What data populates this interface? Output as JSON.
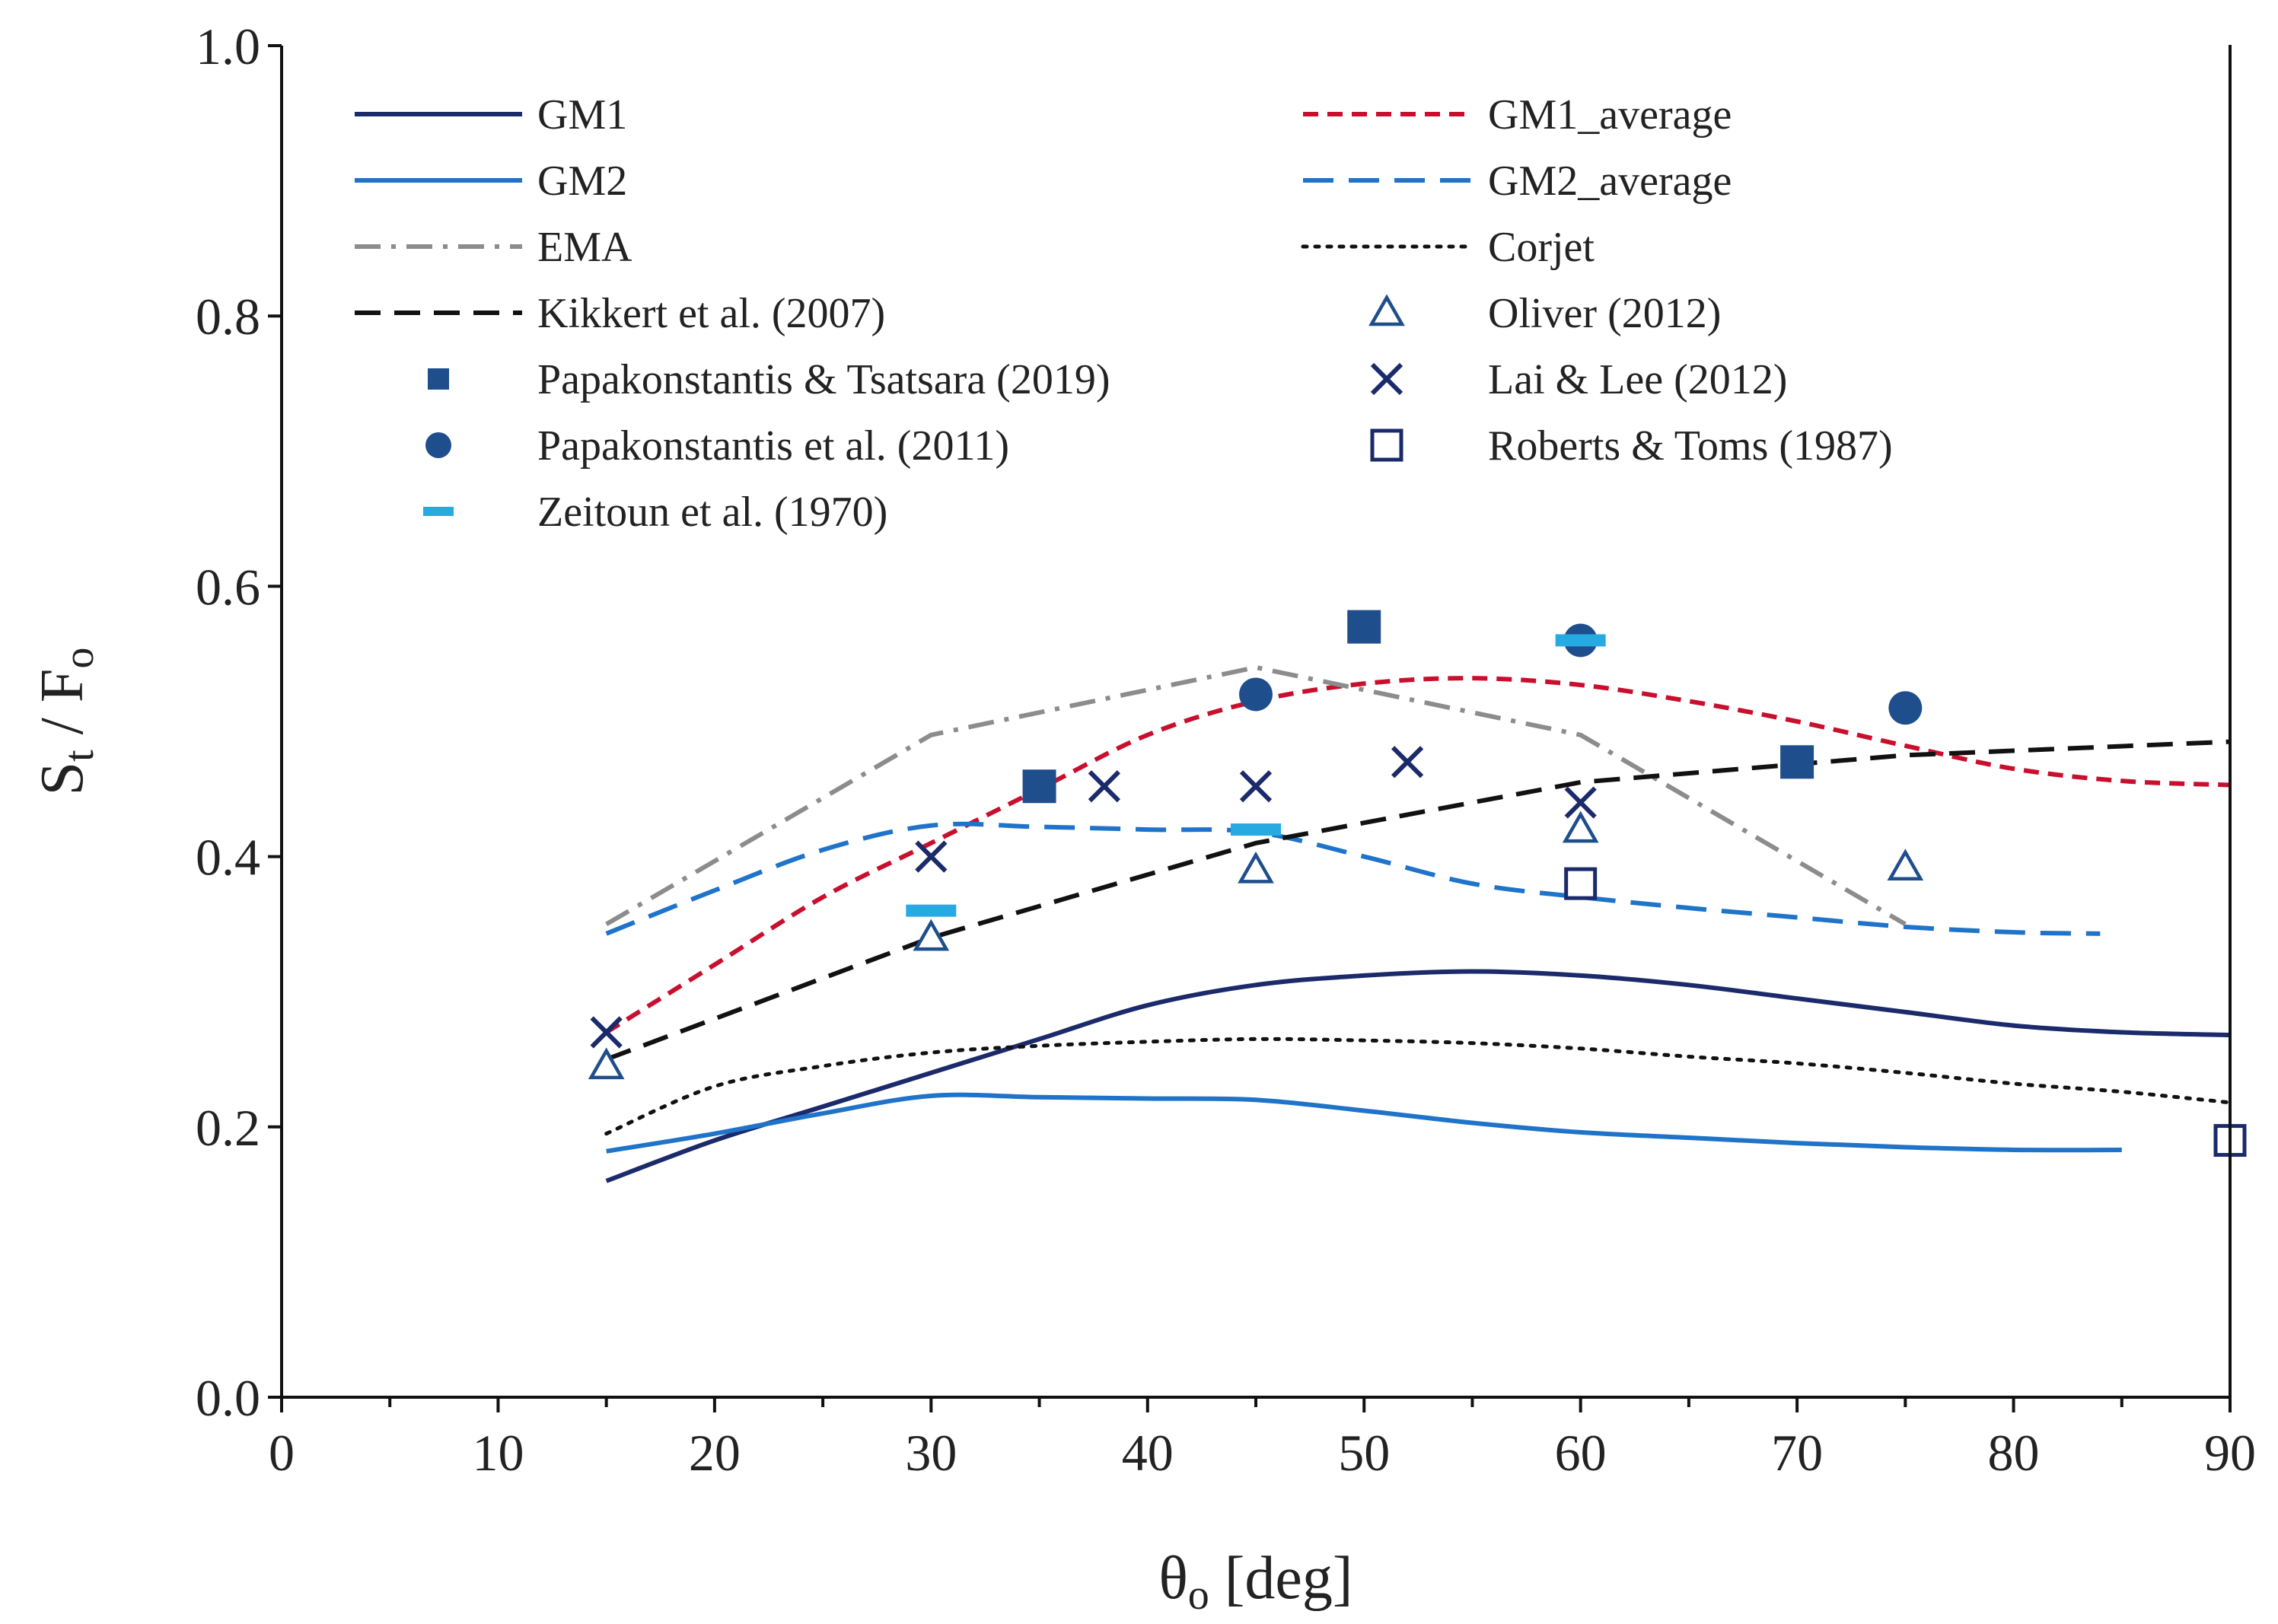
{
  "chart_data": {
    "type": "line",
    "xlabel": {
      "main": "θ",
      "sub": "o",
      "rest": " [deg]"
    },
    "ylabel": {
      "main1": "S",
      "sub1": "t",
      "mid": " / F",
      "sub2": "o"
    },
    "xlim": [
      0,
      90
    ],
    "ylim": [
      0.0,
      1.0
    ],
    "x_ticks": [
      0,
      10,
      20,
      30,
      40,
      50,
      60,
      70,
      80,
      90
    ],
    "y_ticks": [
      "0.0",
      "0.2",
      "0.4",
      "0.6",
      "0.8",
      "1.0"
    ],
    "grid": false,
    "legend_position": "top",
    "series": [
      {
        "name": "GM1",
        "kind": "line",
        "color": "#1b2a6b",
        "dash": "solid",
        "x": [
          15,
          20,
          25,
          30,
          35,
          40,
          45,
          50,
          55,
          60,
          65,
          70,
          75,
          80,
          85,
          90
        ],
        "y": [
          0.16,
          0.19,
          0.215,
          0.24,
          0.265,
          0.29,
          0.305,
          0.312,
          0.315,
          0.312,
          0.305,
          0.295,
          0.285,
          0.275,
          0.27,
          0.268
        ]
      },
      {
        "name": "GM1_average",
        "kind": "line",
        "color": "#c8102e",
        "dash": "short",
        "x": [
          15,
          20,
          25,
          30,
          35,
          40,
          45,
          50,
          55,
          60,
          65,
          70,
          75,
          80,
          85,
          90
        ],
        "y": [
          0.27,
          0.32,
          0.37,
          0.41,
          0.45,
          0.49,
          0.515,
          0.528,
          0.532,
          0.527,
          0.515,
          0.5,
          0.482,
          0.465,
          0.456,
          0.453
        ]
      },
      {
        "name": "GM2",
        "kind": "line",
        "color": "#1f73c9",
        "dash": "solid",
        "x": [
          15,
          20,
          25,
          30,
          35,
          40,
          45,
          50,
          55,
          60,
          65,
          70,
          75,
          80,
          85
        ],
        "y": [
          0.182,
          0.195,
          0.21,
          0.223,
          0.222,
          0.221,
          0.22,
          0.212,
          0.203,
          0.196,
          0.192,
          0.188,
          0.185,
          0.183,
          0.183
        ]
      },
      {
        "name": "GM2_average",
        "kind": "line",
        "color": "#1f73c9",
        "dash": "long",
        "x": [
          15,
          20,
          25,
          30,
          35,
          40,
          45,
          50,
          55,
          60,
          65,
          70,
          75,
          80,
          84
        ],
        "y": [
          0.343,
          0.375,
          0.405,
          0.423,
          0.422,
          0.42,
          0.418,
          0.4,
          0.38,
          0.37,
          0.362,
          0.355,
          0.348,
          0.344,
          0.343
        ]
      },
      {
        "name": "EMA",
        "kind": "line",
        "color": "#8c8c8c",
        "dash": "dashdot",
        "x": [
          15,
          30,
          45,
          60,
          75
        ],
        "y": [
          0.35,
          0.49,
          0.54,
          0.49,
          0.35
        ]
      },
      {
        "name": "Corjet",
        "kind": "line",
        "color": "#111111",
        "dash": "dotted",
        "x": [
          15,
          20,
          25,
          30,
          35,
          40,
          45,
          50,
          55,
          60,
          65,
          70,
          75,
          80,
          85,
          90
        ],
        "y": [
          0.195,
          0.23,
          0.245,
          0.255,
          0.26,
          0.263,
          0.265,
          0.264,
          0.262,
          0.258,
          0.252,
          0.247,
          0.24,
          0.232,
          0.226,
          0.218
        ]
      },
      {
        "name": "Kikkert et al. (2007)",
        "kind": "line",
        "color": "#111111",
        "dash": "medium",
        "x": [
          15,
          30,
          45,
          60,
          75,
          90
        ],
        "y": [
          0.25,
          0.34,
          0.41,
          0.455,
          0.475,
          0.485
        ]
      },
      {
        "name": "Oliver (2012)",
        "kind": "marker",
        "marker": "triangle-open",
        "color": "#1f4e8c",
        "x": [
          15,
          30,
          45,
          60,
          75
        ],
        "y": [
          0.245,
          0.34,
          0.39,
          0.42,
          0.392
        ]
      },
      {
        "name": "Papakonstantis & Tsatsara (2019)",
        "kind": "marker",
        "marker": "square-filled",
        "color": "#1f4e8c",
        "x": [
          35,
          50,
          70
        ],
        "y": [
          0.452,
          0.57,
          0.47
        ]
      },
      {
        "name": "Lai & Lee (2012)",
        "kind": "marker",
        "marker": "x",
        "color": "#1b2a6b",
        "x": [
          15,
          30,
          38,
          45,
          52,
          60
        ],
        "y": [
          0.27,
          0.4,
          0.452,
          0.452,
          0.47,
          0.44
        ]
      },
      {
        "name": "Papakonstantis et al. (2011)",
        "kind": "marker",
        "marker": "circle-filled",
        "color": "#1f4e8c",
        "x": [
          45,
          60,
          75
        ],
        "y": [
          0.52,
          0.56,
          0.51
        ]
      },
      {
        "name": "Roberts & Toms (1987)",
        "kind": "marker",
        "marker": "square-open",
        "color": "#1b2a6b",
        "x": [
          60,
          90
        ],
        "y": [
          0.38,
          0.19
        ]
      },
      {
        "name": "Zeitoun et al. (1970)",
        "kind": "marker",
        "marker": "dash",
        "color": "#27a9e1",
        "x": [
          30,
          45,
          60
        ],
        "y": [
          0.36,
          0.42,
          0.56
        ]
      }
    ]
  }
}
